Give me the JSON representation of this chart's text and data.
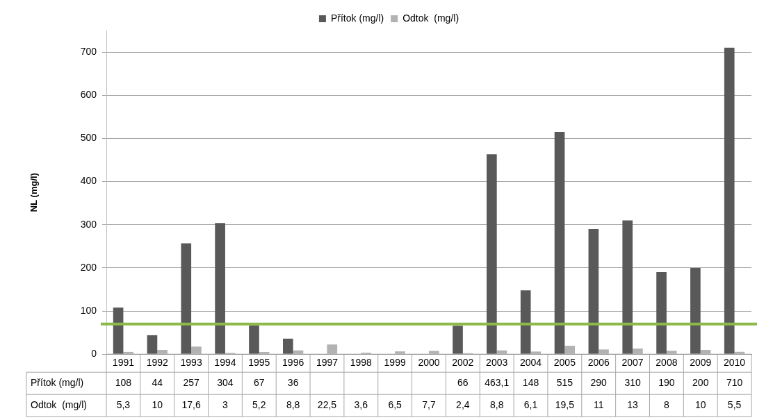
{
  "chart_data": {
    "type": "bar",
    "ylabel": "NL (mg/l)",
    "categories": [
      "1991",
      "1992",
      "1993",
      "1994",
      "1995",
      "1996",
      "1997",
      "1998",
      "1999",
      "2000",
      "2002",
      "2003",
      "2004",
      "2005",
      "2006",
      "2007",
      "2008",
      "2009",
      "2010"
    ],
    "series": [
      {
        "name": "Přítok (mg/l)",
        "color": "#595959",
        "values": [
          108,
          44,
          257,
          304,
          67,
          36,
          null,
          null,
          null,
          null,
          66,
          463.1,
          148,
          515,
          290,
          310,
          190,
          200,
          710
        ],
        "value_labels": [
          "108",
          "44",
          "257",
          "304",
          "67",
          "36",
          null,
          null,
          null,
          null,
          "66",
          "463,1",
          "148",
          "515",
          "290",
          "310",
          "190",
          "200",
          "710"
        ]
      },
      {
        "name": "Odtok  (mg/l)",
        "color": "#b2b2b2",
        "values": [
          5.3,
          10,
          17.6,
          3,
          5.2,
          8.8,
          22.5,
          3.6,
          6.5,
          7.7,
          2.4,
          8.8,
          6.1,
          19.5,
          11,
          13,
          8,
          10,
          5.5
        ],
        "value_labels": [
          "5,3",
          "10",
          "17,6",
          "3",
          "5,2",
          "8,8",
          "22,5",
          "3,6",
          "6,5",
          "7,7",
          "2,4",
          "8,8",
          "6,1",
          "19,5",
          "11",
          "13",
          "8",
          "10",
          "5,5"
        ]
      }
    ],
    "ylim": [
      0,
      750
    ],
    "yticks": [
      0,
      100,
      200,
      300,
      400,
      500,
      600,
      700
    ],
    "grid": "y",
    "legend": "top",
    "ref_lines": [
      {
        "axis": "y",
        "value": 70,
        "color": "#8db94a"
      }
    ]
  }
}
